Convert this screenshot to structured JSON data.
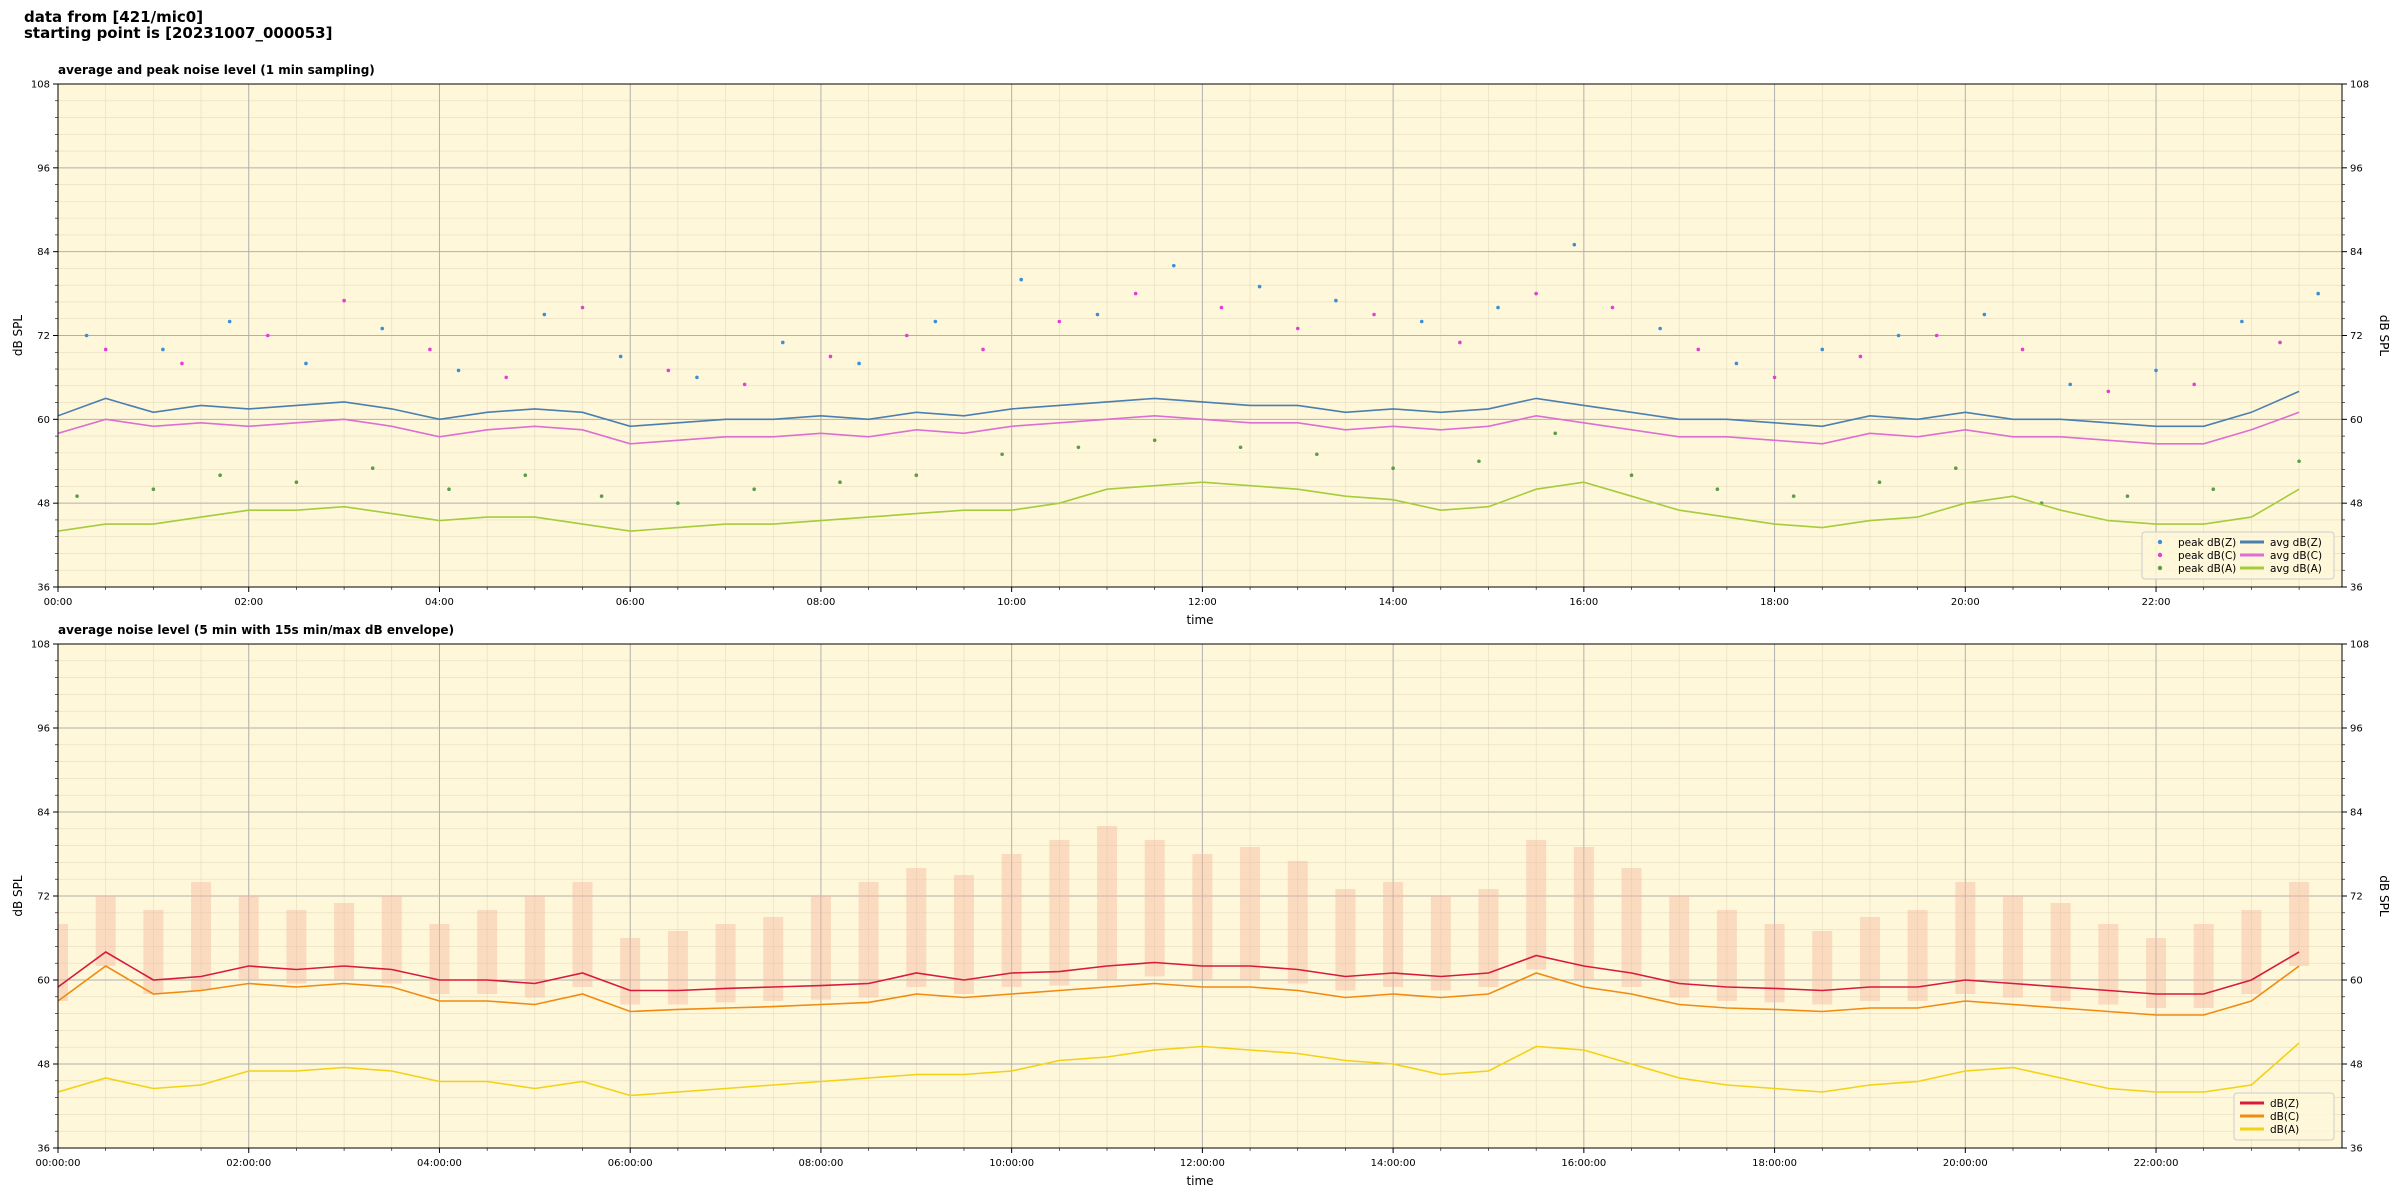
{
  "header": {
    "lines": [
      "data from [421/mic0]",
      "starting point is [20231007_000053]"
    ]
  },
  "chart_data": [
    {
      "type": "line",
      "title": "average and peak noise level (1 min sampling)",
      "xlabel": "time",
      "ylabel": "dB SPL",
      "facecolor": "#fff7d9",
      "grid": true,
      "minor_grid": true,
      "legend": "lower right",
      "legend_columns": 2,
      "xlim": [
        0,
        23.95
      ],
      "ylim": [
        36,
        108
      ],
      "yticks": [
        36,
        48,
        60,
        72,
        84,
        96,
        108
      ],
      "xticks": [
        {
          "value": 0,
          "label": "00:00"
        },
        {
          "value": 2,
          "label": "02:00"
        },
        {
          "value": 4,
          "label": "04:00"
        },
        {
          "value": 6,
          "label": "06:00"
        },
        {
          "value": 8,
          "label": "08:00"
        },
        {
          "value": 10,
          "label": "10:00"
        },
        {
          "value": 12,
          "label": "12:00"
        },
        {
          "value": 14,
          "label": "14:00"
        },
        {
          "value": 16,
          "label": "16:00"
        },
        {
          "value": 18,
          "label": "18:00"
        },
        {
          "value": 20,
          "label": "20:00"
        },
        {
          "value": 22,
          "label": "22:00"
        }
      ],
      "x": [
        0,
        0.5,
        1,
        1.5,
        2,
        2.5,
        3,
        3.5,
        4,
        4.5,
        5,
        5.5,
        6,
        6.5,
        7,
        7.5,
        8,
        8.5,
        9,
        9.5,
        10,
        10.5,
        11,
        11.5,
        12,
        12.5,
        13,
        13.5,
        14,
        14.5,
        15,
        15.5,
        16,
        16.5,
        17,
        17.5,
        18,
        18.5,
        19,
        19.5,
        20,
        20.5,
        21,
        21.5,
        22,
        22.5,
        23,
        23.5
      ],
      "series": [
        {
          "name": "peak dB(Z)",
          "kind": "scatter",
          "color": "#3a8fd8",
          "x": [
            0.3,
            1.1,
            1.8,
            2.6,
            3.4,
            4.2,
            5.1,
            5.9,
            6.7,
            7.6,
            8.4,
            9.2,
            10.1,
            10.9,
            11.7,
            12.6,
            13.4,
            14.3,
            15.1,
            15.9,
            16.8,
            17.6,
            18.5,
            19.3,
            20.2,
            21.1,
            22.0,
            22.9,
            23.7
          ],
          "values": [
            72,
            70,
            74,
            68,
            73,
            67,
            75,
            69,
            66,
            71,
            68,
            74,
            80,
            75,
            82,
            79,
            77,
            74,
            76,
            85,
            73,
            68,
            70,
            72,
            75,
            65,
            67,
            74,
            78
          ]
        },
        {
          "name": "peak dB(C)",
          "kind": "scatter",
          "color": "#e23fd4",
          "x": [
            0.5,
            1.3,
            2.2,
            3.0,
            3.9,
            4.7,
            5.5,
            6.4,
            7.2,
            8.1,
            8.9,
            9.7,
            10.5,
            11.3,
            12.2,
            13.0,
            13.8,
            14.7,
            15.5,
            16.3,
            17.2,
            18.0,
            18.9,
            19.7,
            20.6,
            21.5,
            22.4,
            23.3
          ],
          "values": [
            70,
            68,
            72,
            77,
            70,
            66,
            76,
            67,
            65,
            69,
            72,
            70,
            74,
            78,
            76,
            73,
            75,
            71,
            78,
            76,
            70,
            66,
            69,
            72,
            70,
            64,
            65,
            71
          ]
        },
        {
          "name": "peak dB(A)",
          "kind": "scatter",
          "color": "#5a9e4a",
          "x": [
            0.2,
            1.0,
            1.7,
            2.5,
            3.3,
            4.1,
            4.9,
            5.7,
            6.5,
            7.3,
            8.2,
            9.0,
            9.9,
            10.7,
            11.5,
            12.4,
            13.2,
            14.0,
            14.9,
            15.7,
            16.5,
            17.4,
            18.2,
            19.1,
            19.9,
            20.8,
            21.7,
            22.6,
            23.5
          ],
          "values": [
            49,
            50,
            52,
            51,
            53,
            50,
            52,
            49,
            48,
            50,
            51,
            52,
            55,
            56,
            57,
            56,
            55,
            53,
            54,
            58,
            52,
            50,
            49,
            51,
            53,
            48,
            49,
            50,
            54
          ]
        },
        {
          "name": "avg dB(Z)",
          "kind": "line",
          "color": "#4a7fb0",
          "values": [
            60.5,
            63,
            61,
            62,
            61.5,
            62,
            62.5,
            61.5,
            60,
            61,
            61.5,
            61,
            59,
            59.5,
            60,
            60,
            60.5,
            60,
            61,
            60.5,
            61.5,
            62,
            62.5,
            63,
            62.5,
            62,
            62,
            61,
            61.5,
            61,
            61.5,
            63,
            62,
            61,
            60,
            60,
            59.5,
            59,
            60.5,
            60,
            61,
            60,
            60,
            59.5,
            59,
            59,
            61,
            64
          ]
        },
        {
          "name": "avg dB(C)",
          "kind": "line",
          "color": "#dc6fd2",
          "values": [
            58,
            60,
            59,
            59.5,
            59,
            59.5,
            60,
            59,
            57.5,
            58.5,
            59,
            58.5,
            56.5,
            57,
            57.5,
            57.5,
            58,
            57.5,
            58.5,
            58,
            59,
            59.5,
            60,
            60.5,
            60,
            59.5,
            59.5,
            58.5,
            59,
            58.5,
            59,
            60.5,
            59.5,
            58.5,
            57.5,
            57.5,
            57,
            56.5,
            58,
            57.5,
            58.5,
            57.5,
            57.5,
            57,
            56.5,
            56.5,
            58.5,
            61
          ]
        },
        {
          "name": "avg dB(A)",
          "kind": "line",
          "color": "#a4cc3c",
          "values": [
            44,
            45,
            45,
            46,
            47,
            47,
            47.5,
            46.5,
            45.5,
            46,
            46,
            45,
            44,
            44.5,
            45,
            45,
            45.5,
            46,
            46.5,
            47,
            47,
            48,
            50,
            50.5,
            51,
            50.5,
            50,
            49,
            48.5,
            47,
            47.5,
            50,
            51,
            49,
            47,
            46,
            45,
            44.5,
            45.5,
            46,
            48,
            49,
            47,
            45.5,
            45,
            45,
            46,
            50
          ]
        }
      ]
    },
    {
      "type": "line",
      "title": "average noise level (5 min with 15s min/max dB envelope)",
      "xlabel": "time",
      "ylabel": "dB SPL",
      "facecolor": "#fff7d9",
      "grid": true,
      "minor_grid": true,
      "legend": "lower right",
      "legend_columns": 1,
      "xlim": [
        0,
        23.95
      ],
      "ylim": [
        36,
        108
      ],
      "yticks": [
        36,
        48,
        60,
        72,
        84,
        96,
        108
      ],
      "xticks": [
        {
          "value": 0,
          "label": "00:00:00"
        },
        {
          "value": 2,
          "label": "02:00:00"
        },
        {
          "value": 4,
          "label": "04:00:00"
        },
        {
          "value": 6,
          "label": "06:00:00"
        },
        {
          "value": 8,
          "label": "08:00:00"
        },
        {
          "value": 10,
          "label": "10:00:00"
        },
        {
          "value": 12,
          "label": "12:00:00"
        },
        {
          "value": 14,
          "label": "14:00:00"
        },
        {
          "value": 16,
          "label": "16:00:00"
        },
        {
          "value": 18,
          "label": "18:00:00"
        },
        {
          "value": 20,
          "label": "20:00:00"
        },
        {
          "value": 22,
          "label": "22:00:00"
        }
      ],
      "x": [
        0,
        0.5,
        1,
        1.5,
        2,
        2.5,
        3,
        3.5,
        4,
        4.5,
        5,
        5.5,
        6,
        6.5,
        7,
        7.5,
        8,
        8.5,
        9,
        9.5,
        10,
        10.5,
        11,
        11.5,
        12,
        12.5,
        13,
        13.5,
        14,
        14.5,
        15,
        15.5,
        16,
        16.5,
        17,
        17.5,
        18,
        18.5,
        19,
        19.5,
        20,
        20.5,
        21,
        21.5,
        22,
        22.5,
        23,
        23.5
      ],
      "envelope": {
        "color": "#f4b8a0",
        "high": [
          68,
          72,
          70,
          74,
          72,
          70,
          71,
          72,
          68,
          70,
          72,
          74,
          66,
          67,
          68,
          69,
          72,
          74,
          76,
          75,
          78,
          80,
          82,
          80,
          78,
          79,
          77,
          73,
          74,
          72,
          73,
          80,
          79,
          76,
          72,
          70,
          68,
          67,
          69,
          70,
          74,
          72,
          71,
          68,
          66,
          68,
          70,
          74
        ],
        "low": [
          57,
          62,
          58,
          58.5,
          60,
          59.5,
          60,
          59.5,
          58,
          58,
          57.5,
          59,
          56.5,
          56.5,
          56.8,
          57,
          57.2,
          57.5,
          59,
          58,
          59,
          59.2,
          60,
          60.5,
          60,
          60,
          59.5,
          58.5,
          59,
          58.5,
          59,
          61.5,
          60,
          59,
          57.5,
          57,
          56.8,
          56.5,
          57,
          57,
          58,
          57.5,
          57,
          56.5,
          56,
          56,
          58,
          62
        ]
      },
      "series": [
        {
          "name": "dB(Z)",
          "kind": "line",
          "color": "#d81b3c",
          "values": [
            59,
            64,
            60,
            60.5,
            62,
            61.5,
            62,
            61.5,
            60,
            60,
            59.5,
            61,
            58.5,
            58.5,
            58.8,
            59,
            59.2,
            59.5,
            61,
            60,
            61,
            61.2,
            62,
            62.5,
            62,
            62,
            61.5,
            60.5,
            61,
            60.5,
            61,
            63.5,
            62,
            61,
            59.5,
            59,
            58.8,
            58.5,
            59,
            59,
            60,
            59.5,
            59,
            58.5,
            58,
            58,
            60,
            64
          ]
        },
        {
          "name": "dB(C)",
          "kind": "line",
          "color": "#f08a10",
          "values": [
            57,
            62,
            58,
            58.5,
            59.5,
            59,
            59.5,
            59,
            57,
            57,
            56.5,
            58,
            55.5,
            55.8,
            56,
            56.2,
            56.5,
            56.8,
            58,
            57.5,
            58,
            58.5,
            59,
            59.5,
            59,
            59,
            58.5,
            57.5,
            58,
            57.5,
            58,
            61,
            59,
            58,
            56.5,
            56,
            55.8,
            55.5,
            56,
            56,
            57,
            56.5,
            56,
            55.5,
            55,
            55,
            57,
            62
          ]
        },
        {
          "name": "dB(A)",
          "kind": "line",
          "color": "#f2d215",
          "values": [
            44,
            46,
            44.5,
            45,
            47,
            47,
            47.5,
            47,
            45.5,
            45.5,
            44.5,
            45.5,
            43.5,
            44,
            44.5,
            45,
            45.5,
            46,
            46.5,
            46.5,
            47,
            48.5,
            49,
            50,
            50.5,
            50,
            49.5,
            48.5,
            48,
            46.5,
            47,
            50.5,
            50,
            48,
            46,
            45,
            44.5,
            44,
            45,
            45.5,
            47,
            47.5,
            46,
            44.5,
            44,
            44,
            45,
            51
          ]
        }
      ]
    }
  ]
}
